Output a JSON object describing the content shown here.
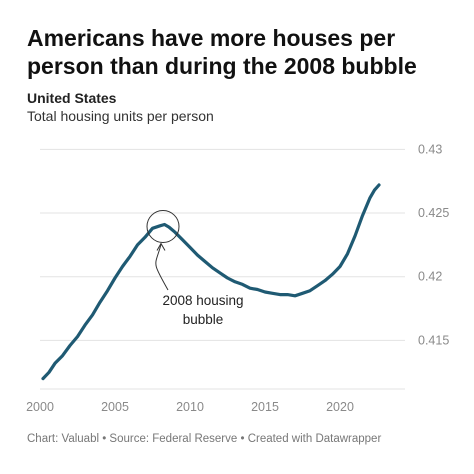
{
  "header": {
    "title": "Americans have more houses per person than during the 2008 bubble",
    "subtitle_strong": "United States",
    "subtitle": "Total housing units per person"
  },
  "footer": {
    "text": "Chart: Valuabl • Source: Federal Reserve • Created with Datawrapper"
  },
  "chart_data": {
    "type": "line",
    "title": "Americans have more houses per person than during the 2008 bubble",
    "subtitle": "Total housing units per person",
    "xlim": [
      2000,
      2023
    ],
    "ylim": [
      0.4115,
      0.4305
    ],
    "x_ticks": [
      2000,
      2005,
      2010,
      2015,
      2020
    ],
    "y_ticks": [
      0.415,
      0.42,
      0.425,
      0.43
    ],
    "y_tick_labels": [
      "0.415",
      "0.42",
      "0.425",
      "0.43"
    ],
    "grid": true,
    "line_color": "#1f5a73",
    "series": [
      {
        "x": [
          2000.2,
          2000.6,
          2001,
          2001.5,
          2002,
          2002.5,
          2003,
          2003.5,
          2004,
          2004.5,
          2005,
          2005.5,
          2006,
          2006.5,
          2007,
          2007.5,
          2008,
          2008.3,
          2008.6,
          2009,
          2009.5,
          2010,
          2010.5,
          2011,
          2011.5,
          2012,
          2012.5,
          2013,
          2013.5,
          2014,
          2014.5,
          2015,
          2015.5,
          2016,
          2016.5,
          2017,
          2017.5,
          2018,
          2018.5,
          2019,
          2019.5,
          2020,
          2020.5,
          2021,
          2021.5,
          2022,
          2022.3,
          2022.6
        ],
        "y": [
          0.412,
          0.4125,
          0.4132,
          0.4138,
          0.4146,
          0.4153,
          0.4162,
          0.417,
          0.418,
          0.4189,
          0.4199,
          0.4208,
          0.4216,
          0.4225,
          0.4231,
          0.4238,
          0.424,
          0.4241,
          0.4239,
          0.4235,
          0.4229,
          0.4223,
          0.4217,
          0.4212,
          0.4207,
          0.4203,
          0.4199,
          0.4196,
          0.4194,
          0.4191,
          0.419,
          0.4188,
          0.4187,
          0.4186,
          0.4186,
          0.4185,
          0.4187,
          0.4189,
          0.4193,
          0.4197,
          0.4202,
          0.4208,
          0.4218,
          0.4232,
          0.4248,
          0.4262,
          0.4268,
          0.4272
        ]
      }
    ],
    "annotation": {
      "label_line1": "2008 housing",
      "label_line2": "bubble",
      "target_x": 2008.2,
      "target_y": 0.4241
    }
  }
}
